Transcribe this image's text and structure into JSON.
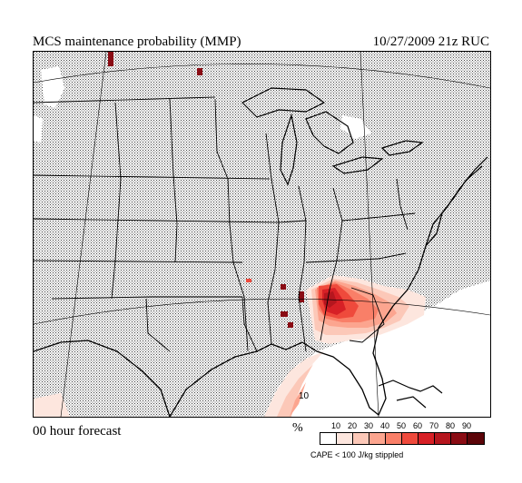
{
  "header": {
    "title": "MCS maintenance probability (MMP)",
    "datestamp": "10/27/2009  21z  RUC"
  },
  "footer": {
    "forecast_label": "00 hour forecast"
  },
  "map": {
    "contour_label": "10",
    "colors": {
      "stipple_bg": "#c4c4c4",
      "land_line": "#000000"
    }
  },
  "legend": {
    "unit": "%",
    "ticks": [
      "10",
      "20",
      "30",
      "40",
      "50",
      "60",
      "70",
      "80",
      "90"
    ],
    "colors": [
      "#ffffff",
      "#fde6de",
      "#fcc8b8",
      "#fca58f",
      "#f97f68",
      "#ef4a3c",
      "#d72026",
      "#b5161e",
      "#8a0c14",
      "#5c0509"
    ],
    "note": "CAPE < 100 J/kg stippled"
  }
}
